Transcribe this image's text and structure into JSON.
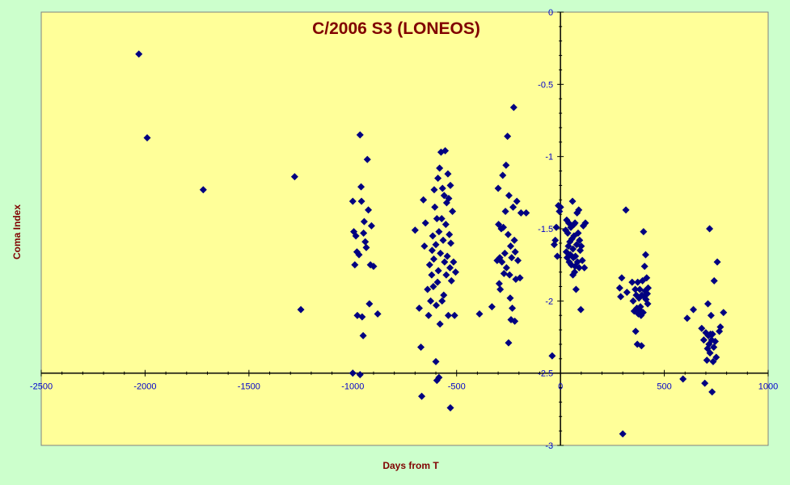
{
  "chart_data": {
    "type": "scatter",
    "title": "C/2006 S3 (LONEOS)",
    "xlabel": "Days from  T",
    "ylabel": "Coma Index",
    "xlim": [
      -2500,
      1000
    ],
    "ylim": [
      -3,
      0
    ],
    "x_ticks": [
      -2500,
      -2000,
      -1500,
      -1000,
      -500,
      0,
      500,
      1000
    ],
    "y_ticks": [
      0,
      -0.5,
      -1,
      -1.5,
      -2,
      -2.5,
      -3
    ],
    "x_tick_labels": [
      "-2500",
      "-2000",
      "-1500",
      "-1000",
      "-500",
      "0",
      "500",
      "1000"
    ],
    "y_tick_labels": [
      "0",
      "-0.5",
      "-1",
      "-1.5",
      "-2",
      "-2.5",
      "-3"
    ],
    "grid": false,
    "legend": null,
    "colors": {
      "plot_bg": "#ffff99",
      "page_bg": "#ccffcc",
      "marker": "#000080",
      "axis_text": "#0000cc",
      "title": "#800000"
    },
    "marker": "diamond",
    "points": [
      [
        -2030,
        -0.29
      ],
      [
        -1990,
        -0.87
      ],
      [
        -1720,
        -1.23
      ],
      [
        -1280,
        -1.14
      ],
      [
        -1250,
        -2.06
      ],
      [
        -1000,
        -1.31
      ],
      [
        -995,
        -1.52
      ],
      [
        -990,
        -1.75
      ],
      [
        -985,
        -1.55
      ],
      [
        -980,
        -1.66
      ],
      [
        -978,
        -2.1
      ],
      [
        -970,
        -1.68
      ],
      [
        -965,
        -0.85
      ],
      [
        -960,
        -1.21
      ],
      [
        -958,
        -1.31
      ],
      [
        -955,
        -2.11
      ],
      [
        -950,
        -2.24
      ],
      [
        -948,
        -1.53
      ],
      [
        -945,
        -1.45
      ],
      [
        -940,
        -1.59
      ],
      [
        -935,
        -1.63
      ],
      [
        -930,
        -1.02
      ],
      [
        -925,
        -1.37
      ],
      [
        -920,
        -2.02
      ],
      [
        -915,
        -1.75
      ],
      [
        -910,
        -1.48
      ],
      [
        -900,
        -1.76
      ],
      [
        -880,
        -2.09
      ],
      [
        -1000,
        -2.5
      ],
      [
        -965,
        -2.51
      ],
      [
        -700,
        -1.51
      ],
      [
        -680,
        -2.05
      ],
      [
        -672,
        -2.32
      ],
      [
        -668,
        -2.66
      ],
      [
        -660,
        -1.3
      ],
      [
        -655,
        -1.62
      ],
      [
        -650,
        -1.46
      ],
      [
        -640,
        -1.92
      ],
      [
        -635,
        -2.1
      ],
      [
        -630,
        -1.75
      ],
      [
        -625,
        -2.0
      ],
      [
        -620,
        -1.82
      ],
      [
        -618,
        -1.65
      ],
      [
        -615,
        -1.55
      ],
      [
        -612,
        -1.9
      ],
      [
        -610,
        -1.71
      ],
      [
        -608,
        -1.23
      ],
      [
        -605,
        -1.35
      ],
      [
        -600,
        -1.61
      ],
      [
        -598,
        -2.03
      ],
      [
        -595,
        -1.43
      ],
      [
        -592,
        -1.87
      ],
      [
        -590,
        -1.15
      ],
      [
        -588,
        -1.79
      ],
      [
        -585,
        -1.52
      ],
      [
        -582,
        -1.08
      ],
      [
        -580,
        -2.16
      ],
      [
        -578,
        -1.67
      ],
      [
        -575,
        -0.97
      ],
      [
        -572,
        -1.43
      ],
      [
        -570,
        -2.0
      ],
      [
        -568,
        -1.22
      ],
      [
        -565,
        -1.58
      ],
      [
        -562,
        -1.96
      ],
      [
        -560,
        -1.27
      ],
      [
        -558,
        -1.73
      ],
      [
        -555,
        -0.96
      ],
      [
        -552,
        -1.47
      ],
      [
        -550,
        -1.82
      ],
      [
        -548,
        -1.32
      ],
      [
        -545,
        -1.69
      ],
      [
        -542,
        -1.12
      ],
      [
        -540,
        -2.1
      ],
      [
        -538,
        -1.29
      ],
      [
        -535,
        -1.54
      ],
      [
        -532,
        -1.77
      ],
      [
        -530,
        -1.2
      ],
      [
        -528,
        -1.6
      ],
      [
        -525,
        -1.86
      ],
      [
        -520,
        -1.38
      ],
      [
        -515,
        -1.73
      ],
      [
        -510,
        -2.1
      ],
      [
        -505,
        -1.8
      ],
      [
        -600,
        -2.42
      ],
      [
        -595,
        -2.55
      ],
      [
        -585,
        -2.53
      ],
      [
        -530,
        -2.74
      ],
      [
        -390,
        -2.09
      ],
      [
        -330,
        -2.04
      ],
      [
        -305,
        -1.72
      ],
      [
        -300,
        -1.22
      ],
      [
        -298,
        -1.47
      ],
      [
        -295,
        -1.88
      ],
      [
        -292,
        -1.7
      ],
      [
        -290,
        -1.92
      ],
      [
        -285,
        -1.5
      ],
      [
        -282,
        -1.73
      ],
      [
        -278,
        -1.13
      ],
      [
        -275,
        -1.49
      ],
      [
        -272,
        -1.81
      ],
      [
        -268,
        -1.67
      ],
      [
        -265,
        -1.38
      ],
      [
        -262,
        -1.06
      ],
      [
        -260,
        -1.77
      ],
      [
        -255,
        -0.86
      ],
      [
        -252,
        -1.54
      ],
      [
        -250,
        -2.29
      ],
      [
        -248,
        -1.27
      ],
      [
        -245,
        -1.82
      ],
      [
        -242,
        -1.98
      ],
      [
        -240,
        -1.62
      ],
      [
        -238,
        -2.13
      ],
      [
        -235,
        -1.7
      ],
      [
        -232,
        -2.05
      ],
      [
        -228,
        -1.35
      ],
      [
        -225,
        -0.66
      ],
      [
        -222,
        -1.58
      ],
      [
        -220,
        -2.14
      ],
      [
        -218,
        -1.66
      ],
      [
        -215,
        -1.85
      ],
      [
        -210,
        -1.31
      ],
      [
        -205,
        -1.72
      ],
      [
        -195,
        -1.84
      ],
      [
        -190,
        -1.39
      ],
      [
        -165,
        -1.39
      ],
      [
        -40,
        -2.38
      ],
      [
        -30,
        -1.61
      ],
      [
        -25,
        -1.58
      ],
      [
        -20,
        -1.49
      ],
      [
        -15,
        -1.69
      ],
      [
        -10,
        -1.34
      ],
      [
        -5,
        -1.38
      ],
      [
        0,
        -1.35
      ],
      [
        25,
        -1.51
      ],
      [
        28,
        -1.66
      ],
      [
        30,
        -1.44
      ],
      [
        32,
        -1.7
      ],
      [
        35,
        -1.53
      ],
      [
        38,
        -1.62
      ],
      [
        40,
        -1.46
      ],
      [
        42,
        -1.73
      ],
      [
        45,
        -1.59
      ],
      [
        48,
        -1.68
      ],
      [
        50,
        -1.49
      ],
      [
        52,
        -1.75
      ],
      [
        55,
        -1.57
      ],
      [
        58,
        -1.31
      ],
      [
        60,
        -1.64
      ],
      [
        62,
        -1.7
      ],
      [
        65,
        -1.55
      ],
      [
        68,
        -1.8
      ],
      [
        70,
        -1.46
      ],
      [
        72,
        -1.69
      ],
      [
        75,
        -1.92
      ],
      [
        78,
        -1.61
      ],
      [
        80,
        -1.39
      ],
      [
        82,
        -1.73
      ],
      [
        85,
        -1.53
      ],
      [
        88,
        -1.37
      ],
      [
        90,
        -1.77
      ],
      [
        92,
        -1.58
      ],
      [
        95,
        -1.65
      ],
      [
        98,
        -2.06
      ],
      [
        100,
        -1.62
      ],
      [
        105,
        -1.72
      ],
      [
        110,
        -1.48
      ],
      [
        115,
        -1.77
      ],
      [
        120,
        -1.46
      ],
      [
        60,
        -1.82
      ],
      [
        65,
        -1.47
      ],
      [
        70,
        -1.76
      ],
      [
        285,
        -1.91
      ],
      [
        290,
        -1.97
      ],
      [
        295,
        -1.84
      ],
      [
        300,
        -2.92
      ],
      [
        315,
        -1.37
      ],
      [
        320,
        -1.94
      ],
      [
        345,
        -1.87
      ],
      [
        350,
        -2.0
      ],
      [
        355,
        -2.07
      ],
      [
        360,
        -1.92
      ],
      [
        362,
        -2.21
      ],
      [
        365,
        -1.96
      ],
      [
        368,
        -2.05
      ],
      [
        370,
        -2.3
      ],
      [
        372,
        -1.87
      ],
      [
        375,
        -2.09
      ],
      [
        378,
        -1.98
      ],
      [
        380,
        -2.06
      ],
      [
        382,
        -1.92
      ],
      [
        385,
        -2.04
      ],
      [
        388,
        -2.1
      ],
      [
        390,
        -2.31
      ],
      [
        392,
        -1.96
      ],
      [
        395,
        -1.86
      ],
      [
        398,
        -2.08
      ],
      [
        400,
        -1.52
      ],
      [
        402,
        -1.97
      ],
      [
        405,
        -1.76
      ],
      [
        408,
        -1.93
      ],
      [
        410,
        -1.68
      ],
      [
        412,
        -1.99
      ],
      [
        415,
        -1.84
      ],
      [
        418,
        -1.95
      ],
      [
        420,
        -2.02
      ],
      [
        422,
        -1.91
      ],
      [
        590,
        -2.54
      ],
      [
        610,
        -2.12
      ],
      [
        640,
        -2.06
      ],
      [
        680,
        -2.19
      ],
      [
        690,
        -2.27
      ],
      [
        695,
        -2.57
      ],
      [
        700,
        -2.22
      ],
      [
        705,
        -2.41
      ],
      [
        708,
        -2.33
      ],
      [
        710,
        -2.02
      ],
      [
        712,
        -2.24
      ],
      [
        715,
        -2.3
      ],
      [
        718,
        -1.5
      ],
      [
        720,
        -2.36
      ],
      [
        722,
        -2.23
      ],
      [
        725,
        -2.1
      ],
      [
        728,
        -2.27
      ],
      [
        730,
        -2.63
      ],
      [
        732,
        -2.23
      ],
      [
        735,
        -2.42
      ],
      [
        738,
        -2.32
      ],
      [
        740,
        -1.86
      ],
      [
        745,
        -2.28
      ],
      [
        750,
        -2.39
      ],
      [
        755,
        -1.73
      ],
      [
        765,
        -2.21
      ],
      [
        770,
        -2.18
      ],
      [
        785,
        -2.08
      ]
    ]
  }
}
